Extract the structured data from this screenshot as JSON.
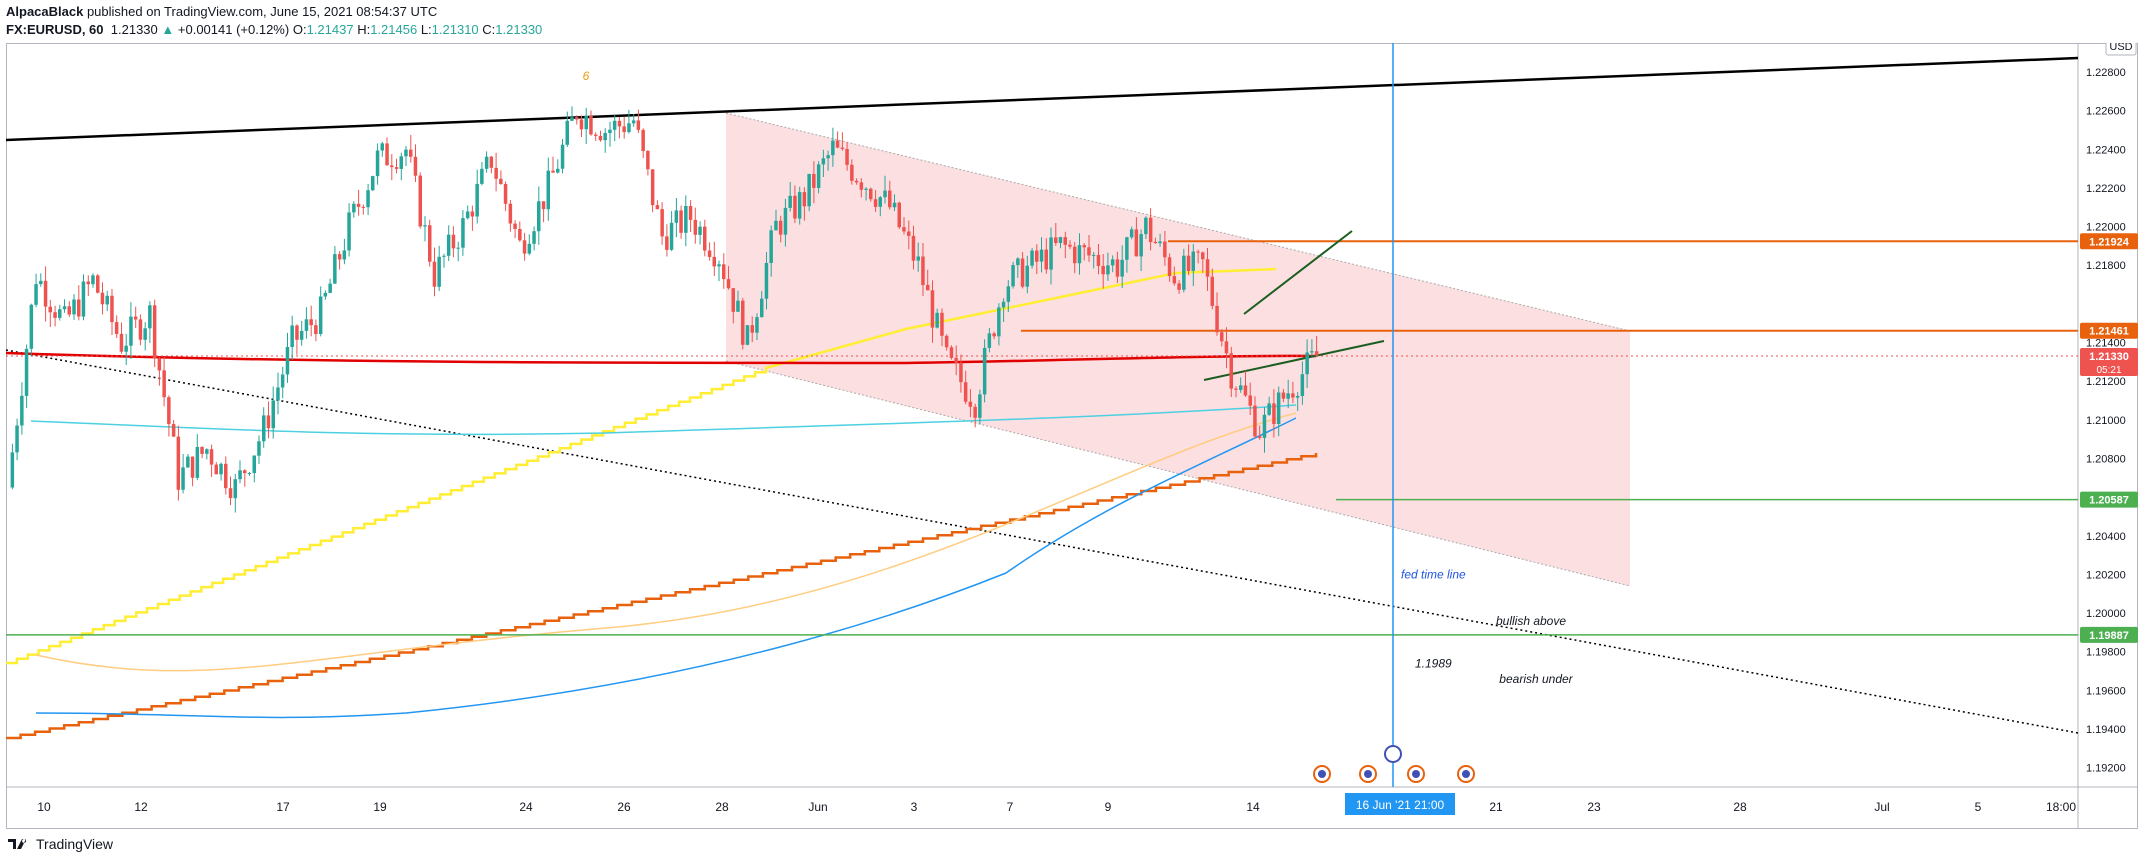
{
  "header": {
    "author": "AlpacaBlack",
    "published_text": "published on TradingView.com, June 15, 2021 08:54:37 UTC",
    "symbol": "FX:EURUSD, 60",
    "last_price": "1.21330",
    "change": "+0.00141 (+0.12%)",
    "open_label": "O:",
    "open": "1.21437",
    "high_label": "H:",
    "high": "1.21456",
    "low_label": "L:",
    "low": "1.21310",
    "close_label": "C:",
    "close": "1.21330"
  },
  "footer": {
    "brand": "TradingView"
  },
  "colors": {
    "up": "#26a69a",
    "down": "#ef5350",
    "channel": "#f8c5c9",
    "orange": "#e8620d",
    "green": "#4caf50",
    "blue_line": "#2196f3",
    "yellow": "#ffee33",
    "red": "#e00000",
    "cyan": "#4dd0e1",
    "tan": "#ffcc80"
  },
  "chart_data": {
    "type": "candlestick",
    "symbol": "EURUSD",
    "interval": "60",
    "currency": "USD",
    "ylim": [
      1.191,
      1.2295
    ],
    "y_ticks": [
      "1.19200",
      "1.19400",
      "1.19600",
      "1.19800",
      "1.20000",
      "1.20200",
      "1.20400",
      "1.20800",
      "1.21000",
      "1.21200",
      "1.21400",
      "1.21800",
      "1.22000",
      "1.22200",
      "1.22400",
      "1.22600",
      "1.22800"
    ],
    "x_ticks": [
      "10",
      "12",
      "17",
      "19",
      "24",
      "26",
      "28",
      "Jun",
      "3",
      "7",
      "9",
      "14",
      "21",
      "23",
      "28",
      "Jul",
      "5",
      "18:00"
    ],
    "close_path": [
      {
        "t": "10",
        "v": 1.2065
      },
      {
        "t": "",
        "v": 1.2175
      },
      {
        "t": "",
        "v": 1.215
      },
      {
        "t": "",
        "v": 1.2172
      },
      {
        "t": "",
        "v": 1.214
      },
      {
        "t": "12",
        "v": 1.2155
      },
      {
        "t": "",
        "v": 1.207
      },
      {
        "t": "",
        "v": 1.2085
      },
      {
        "t": "",
        "v": 1.2065
      },
      {
        "t": "",
        "v": 1.2095
      },
      {
        "t": "17",
        "v": 1.214
      },
      {
        "t": "",
        "v": 1.2155
      },
      {
        "t": "",
        "v": 1.22
      },
      {
        "t": "",
        "v": 1.2235
      },
      {
        "t": "19",
        "v": 1.224
      },
      {
        "t": "",
        "v": 1.2175
      },
      {
        "t": "",
        "v": 1.22
      },
      {
        "t": "",
        "v": 1.2235
      },
      {
        "t": "",
        "v": 1.219
      },
      {
        "t": "24",
        "v": 1.222
      },
      {
        "t": "",
        "v": 1.226
      },
      {
        "t": "",
        "v": 1.225
      },
      {
        "t": "26",
        "v": 1.2255
      },
      {
        "t": "",
        "v": 1.2195
      },
      {
        "t": "",
        "v": 1.2205
      },
      {
        "t": "28",
        "v": 1.2185
      },
      {
        "t": "",
        "v": 1.214
      },
      {
        "t": "",
        "v": 1.22
      },
      {
        "t": "Jun",
        "v": 1.2215
      },
      {
        "t": "",
        "v": 1.224
      },
      {
        "t": "",
        "v": 1.2225
      },
      {
        "t": "3",
        "v": 1.221
      },
      {
        "t": "",
        "v": 1.218
      },
      {
        "t": "",
        "v": 1.213
      },
      {
        "t": "",
        "v": 1.211
      },
      {
        "t": "7",
        "v": 1.217
      },
      {
        "t": "",
        "v": 1.218
      },
      {
        "t": "",
        "v": 1.219
      },
      {
        "t": "9",
        "v": 1.2185
      },
      {
        "t": "",
        "v": 1.218
      },
      {
        "t": "",
        "v": 1.22
      },
      {
        "t": "",
        "v": 1.2175
      },
      {
        "t": "",
        "v": 1.218
      },
      {
        "t": "",
        "v": 1.2125
      },
      {
        "t": "14",
        "v": 1.2095
      },
      {
        "t": "",
        "v": 1.2115
      },
      {
        "t": "",
        "v": 1.2133
      }
    ],
    "levels": [
      {
        "label": "1.21924",
        "value": 1.21924,
        "color": "#e8620d"
      },
      {
        "label": "1.21461",
        "value": 1.21461,
        "color": "#e8620d"
      },
      {
        "label": "1.21330",
        "value": 1.2133,
        "color": "#ef5350",
        "sub": "05:21"
      },
      {
        "label": "1.20587",
        "value": 1.20587,
        "color": "#4caf50"
      },
      {
        "label": "1.19887",
        "value": 1.19887,
        "color": "#4caf50"
      }
    ],
    "annotations": [
      {
        "text": "fed time line",
        "x": "16 Jun '21 21:00",
        "y": 1.202
      },
      {
        "text": "bullish above",
        "x": "21",
        "y": 1.1996
      },
      {
        "text": "1.1989",
        "x": "16 Jun '21 21:00",
        "y": 1.1974
      },
      {
        "text": "bearish under",
        "x": "21",
        "y": 1.1966
      },
      {
        "text": "6",
        "x": "24",
        "y": 1.2278
      }
    ],
    "crosshair_time_label": "16 Jun '21",
    "crosshair_time_value": "21:00"
  }
}
